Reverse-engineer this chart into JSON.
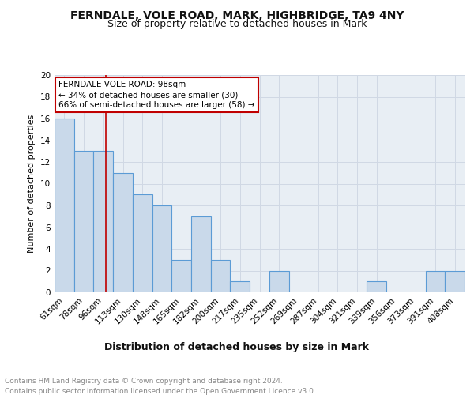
{
  "title1": "FERNDALE, VOLE ROAD, MARK, HIGHBRIDGE, TA9 4NY",
  "title2": "Size of property relative to detached houses in Mark",
  "xlabel": "Distribution of detached houses by size in Mark",
  "ylabel": "Number of detached properties",
  "categories": [
    "61sqm",
    "78sqm",
    "96sqm",
    "113sqm",
    "130sqm",
    "148sqm",
    "165sqm",
    "182sqm",
    "200sqm",
    "217sqm",
    "235sqm",
    "252sqm",
    "269sqm",
    "287sqm",
    "304sqm",
    "321sqm",
    "339sqm",
    "356sqm",
    "373sqm",
    "391sqm",
    "408sqm"
  ],
  "values": [
    16,
    13,
    13,
    11,
    9,
    8,
    3,
    7,
    3,
    1,
    0,
    2,
    0,
    0,
    0,
    0,
    1,
    0,
    0,
    2,
    2
  ],
  "bar_color": "#c9d9ea",
  "bar_edge_color": "#5b9bd5",
  "vline_x": 2.12,
  "vline_color": "#c00000",
  "annotation_text": "FERNDALE VOLE ROAD: 98sqm\n← 34% of detached houses are smaller (30)\n66% of semi-detached houses are larger (58) →",
  "annotation_box_color": "#ffffff",
  "annotation_box_edge": "#c00000",
  "ylim": [
    0,
    20
  ],
  "yticks": [
    0,
    2,
    4,
    6,
    8,
    10,
    12,
    14,
    16,
    18,
    20
  ],
  "grid_color": "#d0d8e4",
  "background_color": "#e8eef4",
  "footer": "Contains HM Land Registry data © Crown copyright and database right 2024.\nContains public sector information licensed under the Open Government Licence v3.0.",
  "title1_fontsize": 10,
  "title2_fontsize": 9,
  "xlabel_fontsize": 9,
  "ylabel_fontsize": 8,
  "tick_fontsize": 7.5,
  "footer_fontsize": 6.5,
  "annot_fontsize": 7.5
}
